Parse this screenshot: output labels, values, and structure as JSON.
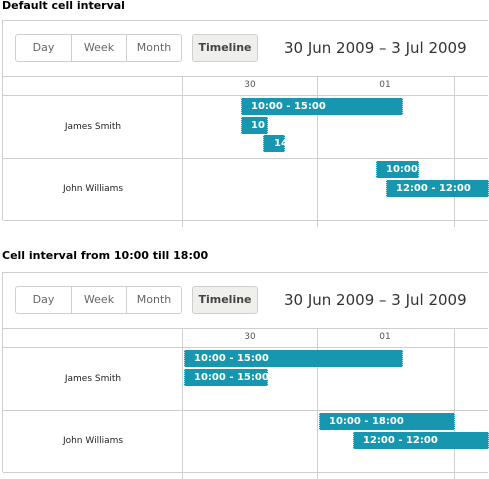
{
  "sections": [
    {
      "title": "Default cell interval",
      "toolbar": {
        "day": "Day",
        "week": "Week",
        "month": "Month",
        "timeline": "Timeline"
      },
      "date_range": "30 Jun 2009 – 3 Jul 2009",
      "days": [
        "30",
        "01"
      ],
      "people": [
        "James Smith",
        "John Williams"
      ],
      "events": [
        "10:00 - 15:00",
        "10",
        "14",
        "10:00",
        "12:00 - 12:00"
      ]
    },
    {
      "title": "Cell interval from 10:00 till 18:00",
      "toolbar": {
        "day": "Day",
        "week": "Week",
        "month": "Month",
        "timeline": "Timeline"
      },
      "date_range": "30 Jun 2009 – 3 Jul 2009",
      "days": [
        "30",
        "01"
      ],
      "people": [
        "James Smith",
        "John Williams"
      ],
      "events": [
        "10:00 - 15:00",
        "10:00 - 15:00",
        "10:00 - 18:00",
        "12:00 - 12:00"
      ]
    }
  ]
}
